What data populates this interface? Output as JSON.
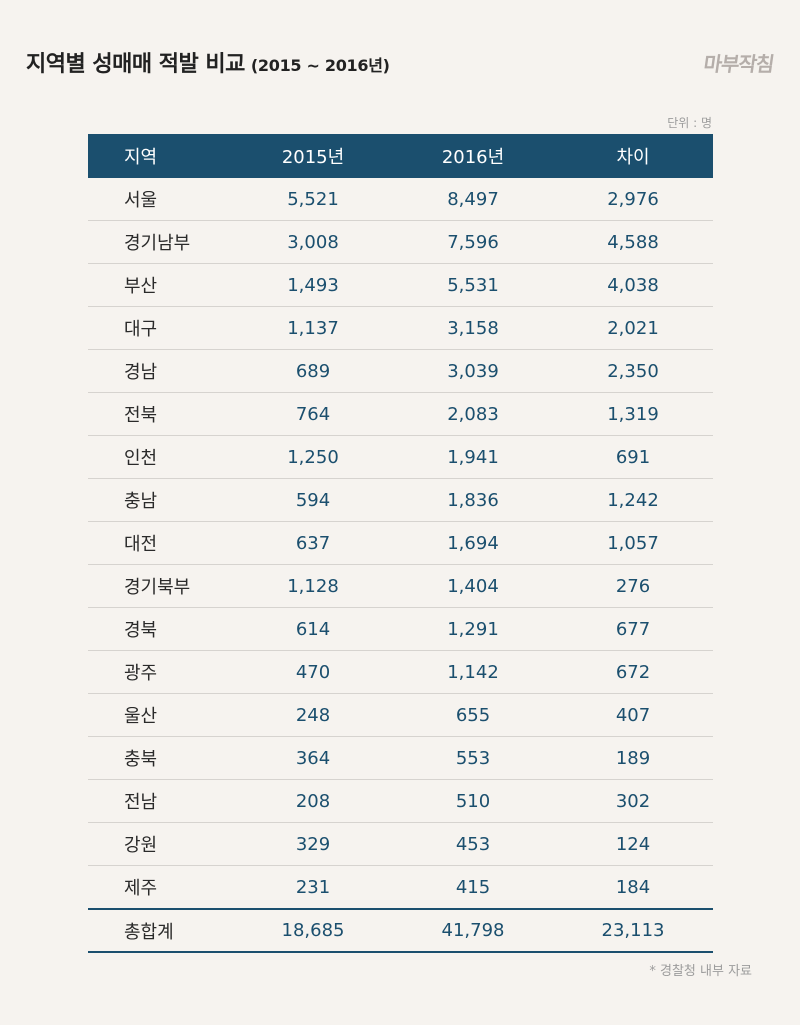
{
  "title": "지역별 성매매 적발 비교",
  "subtitle": "(2015 ~ 2016년)",
  "logo": "마부작침",
  "unit": "단위 : 명",
  "source": "* 경찰청 내부 자료",
  "colors": {
    "header_bg": "#1b4f6e",
    "value_text": "#1b4f6e",
    "background": "#f6f3ef"
  },
  "chart_data": {
    "type": "table",
    "columns": [
      "지역",
      "2015년",
      "2016년",
      "차이"
    ],
    "rows": [
      [
        "서울",
        "5,521",
        "8,497",
        "2,976"
      ],
      [
        "경기남부",
        "3,008",
        "7,596",
        "4,588"
      ],
      [
        "부산",
        "1,493",
        "5,531",
        "4,038"
      ],
      [
        "대구",
        "1,137",
        "3,158",
        "2,021"
      ],
      [
        "경남",
        "689",
        "3,039",
        "2,350"
      ],
      [
        "전북",
        "764",
        "2,083",
        "1,319"
      ],
      [
        "인천",
        "1,250",
        "1,941",
        "691"
      ],
      [
        "충남",
        "594",
        "1,836",
        "1,242"
      ],
      [
        "대전",
        "637",
        "1,694",
        "1,057"
      ],
      [
        "경기북부",
        "1,128",
        "1,404",
        "276"
      ],
      [
        "경북",
        "614",
        "1,291",
        "677"
      ],
      [
        "광주",
        "470",
        "1,142",
        "672"
      ],
      [
        "울산",
        "248",
        "655",
        "407"
      ],
      [
        "충북",
        "364",
        "553",
        "189"
      ],
      [
        "전남",
        "208",
        "510",
        "302"
      ],
      [
        "강원",
        "329",
        "453",
        "124"
      ],
      [
        "제주",
        "231",
        "415",
        "184"
      ]
    ],
    "total": [
      "총합계",
      "18,685",
      "41,798",
      "23,113"
    ]
  }
}
